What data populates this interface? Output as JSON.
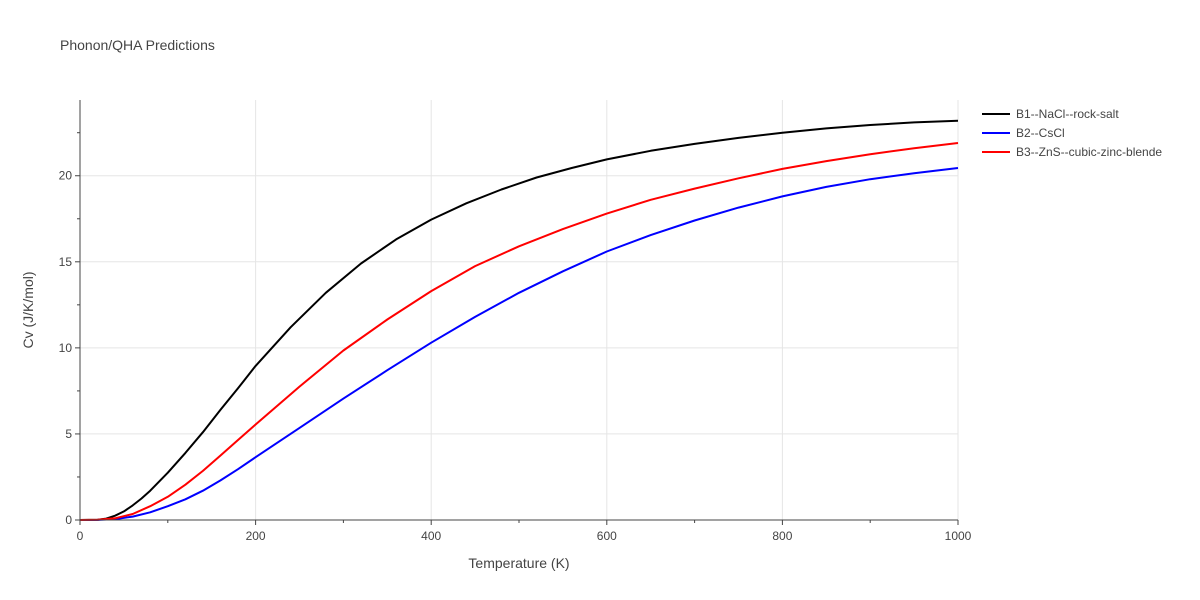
{
  "chart_data": {
    "type": "line",
    "title": "Phonon/QHA Predictions",
    "xlabel": "Temperature (K)",
    "ylabel": "Cv (J/K/mol)",
    "xlim": [
      0,
      1000
    ],
    "ylim": [
      0,
      24.4
    ],
    "xticks": [
      0,
      200,
      400,
      600,
      800,
      1000
    ],
    "yticks": [
      0,
      5,
      10,
      15,
      20
    ],
    "grid": true,
    "legend_position": "top-right-outside",
    "series": [
      {
        "name": "B1--NaCl--rock-salt",
        "color": "#000000",
        "x": [
          0,
          20,
          30,
          40,
          50,
          60,
          70,
          80,
          100,
          120,
          140,
          160,
          180,
          200,
          240,
          280,
          320,
          360,
          400,
          440,
          480,
          520,
          560,
          600,
          650,
          700,
          750,
          800,
          850,
          900,
          950,
          1000
        ],
        "y": [
          0,
          0.02,
          0.08,
          0.25,
          0.5,
          0.85,
          1.25,
          1.7,
          2.75,
          3.9,
          5.1,
          6.4,
          7.65,
          8.95,
          11.2,
          13.2,
          14.9,
          16.3,
          17.45,
          18.4,
          19.2,
          19.9,
          20.45,
          20.95,
          21.45,
          21.85,
          22.2,
          22.5,
          22.75,
          22.95,
          23.1,
          23.2
        ]
      },
      {
        "name": "B2--CsCl",
        "color": "#0000ff",
        "x": [
          0,
          20,
          40,
          60,
          80,
          100,
          120,
          140,
          160,
          180,
          200,
          250,
          300,
          350,
          400,
          450,
          500,
          550,
          600,
          650,
          700,
          750,
          800,
          850,
          900,
          950,
          1000
        ],
        "y": [
          0,
          0.005,
          0.05,
          0.2,
          0.45,
          0.8,
          1.2,
          1.7,
          2.3,
          2.95,
          3.65,
          5.35,
          7.05,
          8.7,
          10.3,
          11.8,
          13.2,
          14.45,
          15.6,
          16.55,
          17.4,
          18.15,
          18.8,
          19.35,
          19.8,
          20.15,
          20.45
        ]
      },
      {
        "name": "B3--ZnS--cubic-zinc-blende",
        "color": "#ff0000",
        "x": [
          0,
          20,
          40,
          60,
          80,
          100,
          120,
          140,
          160,
          180,
          200,
          250,
          300,
          350,
          400,
          450,
          500,
          550,
          600,
          650,
          700,
          750,
          800,
          850,
          900,
          950,
          1000
        ],
        "y": [
          0,
          0.01,
          0.1,
          0.35,
          0.8,
          1.35,
          2.05,
          2.85,
          3.75,
          4.65,
          5.55,
          7.75,
          9.85,
          11.65,
          13.3,
          14.75,
          15.9,
          16.9,
          17.8,
          18.6,
          19.25,
          19.85,
          20.4,
          20.85,
          21.25,
          21.6,
          21.9
        ]
      }
    ]
  }
}
